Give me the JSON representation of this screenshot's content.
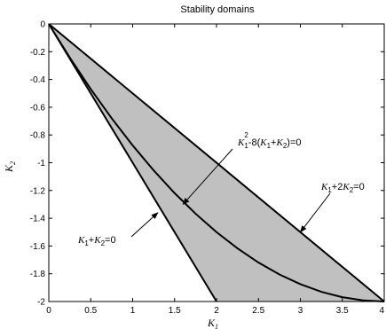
{
  "chart_data": {
    "type": "area",
    "title": "Stability domains",
    "xlabel": "K",
    "xlabel_sub": "1",
    "ylabel": "K",
    "ylabel_sub": "2",
    "xlim": [
      0,
      4
    ],
    "ylim": [
      -2,
      0
    ],
    "xticks": [
      0,
      0.5,
      1,
      1.5,
      2,
      2.5,
      3,
      3.5,
      4
    ],
    "xtick_labels": [
      "0",
      "0.5",
      "1",
      "1.5",
      "2",
      "2.5",
      "3",
      "3.5",
      "4"
    ],
    "yticks": [
      0,
      -0.2,
      -0.4,
      -0.6,
      -0.8,
      -1,
      -1.2,
      -1.4,
      -1.6,
      -1.8,
      -2
    ],
    "ytick_labels": [
      "0",
      "-0.2",
      "-0.4",
      "-0.6",
      "-0.8",
      "-1",
      "-1.2",
      "-1.4",
      "-1.6",
      "-1.8",
      "-2"
    ],
    "grid": false,
    "fill_color": "#c0c0c0",
    "line_color": "#000000",
    "shaded_region": {
      "x": [
        0,
        4,
        2
      ],
      "y": [
        0,
        -2,
        -2
      ]
    },
    "series": [
      {
        "x": [
          0,
          4
        ],
        "y": [
          0,
          -2
        ]
      },
      {
        "x": [
          0,
          2
        ],
        "y": [
          0,
          -2
        ]
      },
      {
        "x": [
          0,
          0.25,
          0.5,
          0.75,
          1,
          1.25,
          1.5,
          1.75,
          2,
          2.25,
          2.5,
          2.75,
          3,
          3.25,
          3.5,
          3.75,
          4
        ],
        "y": [
          0,
          -0.242,
          -0.469,
          -0.68,
          -0.875,
          -1.055,
          -1.219,
          -1.367,
          -1.5,
          -1.617,
          -1.719,
          -1.805,
          -1.875,
          -1.93,
          -1.969,
          -1.992,
          -2
        ]
      }
    ],
    "annotations": [
      {
        "parts": [
          {
            "t": "K",
            "it": true
          },
          {
            "t": "1",
            "sub": true
          },
          {
            "t": "+"
          },
          {
            "t": "K",
            "it": true
          },
          {
            "t": "2",
            "sub": true
          },
          {
            "t": "=0"
          }
        ],
        "arrow_to": [
          1.3,
          -1.36
        ]
      },
      {
        "parts": [
          {
            "t": "K",
            "it": true
          },
          {
            "t": "1",
            "sub": true
          },
          {
            "t": "2",
            "sup": true
          },
          {
            "t": "-8("
          },
          {
            "t": "K",
            "it": true
          },
          {
            "t": "1",
            "sub": true
          },
          {
            "t": "+"
          },
          {
            "t": "K",
            "it": true
          },
          {
            "t": "2",
            "sub": true
          },
          {
            "t": ")=0"
          }
        ],
        "arrow_to": [
          1.6,
          -1.3
        ]
      },
      {
        "parts": [
          {
            "t": "K",
            "it": true
          },
          {
            "t": "1",
            "sub": true
          },
          {
            "t": "+2"
          },
          {
            "t": "K",
            "it": true
          },
          {
            "t": "2",
            "sub": true
          },
          {
            "t": "=0"
          }
        ],
        "arrow_to": [
          3,
          -1.5
        ]
      }
    ]
  }
}
